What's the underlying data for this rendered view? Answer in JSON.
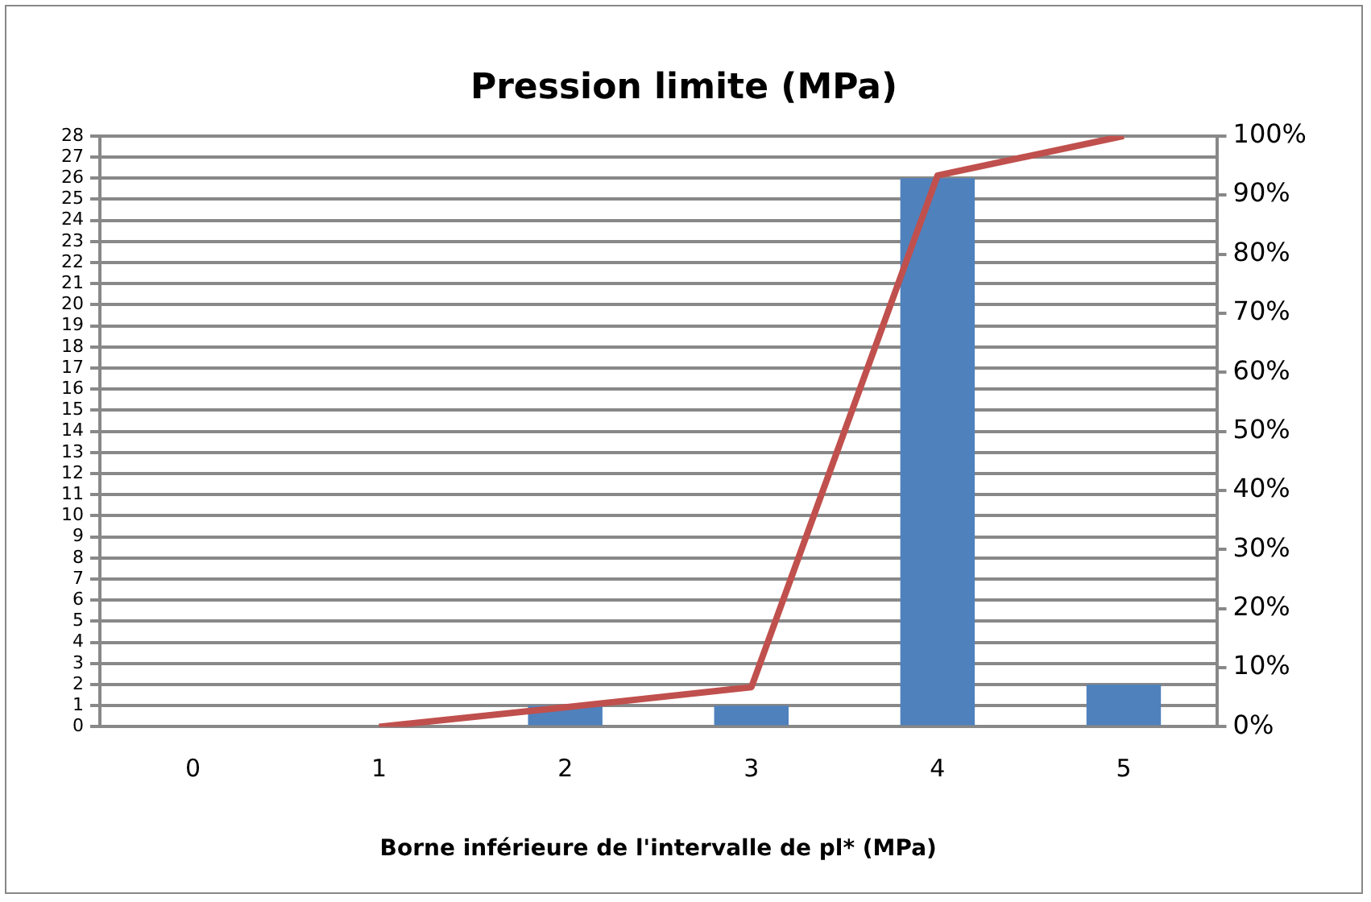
{
  "chart_data": {
    "type": "bar",
    "title": "Pression limite (MPa)",
    "xlabel": "Borne inférieure de l'intervalle de pl* (MPa)",
    "categories": [
      "0",
      "1",
      "2",
      "3",
      "4",
      "5"
    ],
    "series": [
      {
        "color": "#4f81bd",
        "values": [
          0,
          0,
          1,
          1,
          26,
          2
        ]
      },
      {
        "type": "line",
        "axis": "y2",
        "color": "#c0504d",
        "values": [
          null,
          0,
          3.3,
          6.7,
          93.3,
          100
        ]
      }
    ],
    "ylim": [
      0,
      28
    ],
    "yticks": [
      0,
      1,
      2,
      3,
      4,
      5,
      6,
      7,
      8,
      9,
      10,
      11,
      12,
      13,
      14,
      15,
      16,
      17,
      18,
      19,
      20,
      21,
      22,
      23,
      24,
      25,
      26,
      27,
      28
    ],
    "y2lim": [
      0,
      100
    ],
    "y2ticks": [
      {
        "value": 0,
        "label": "0%"
      },
      {
        "value": 10,
        "label": "10%"
      },
      {
        "value": 20,
        "label": "20%"
      },
      {
        "value": 30,
        "label": "30%"
      },
      {
        "value": 40,
        "label": "40%"
      },
      {
        "value": 50,
        "label": "50%"
      },
      {
        "value": 60,
        "label": "60%"
      },
      {
        "value": 70,
        "label": "70%"
      },
      {
        "value": 80,
        "label": "80%"
      },
      {
        "value": 90,
        "label": "90%"
      },
      {
        "value": 100,
        "label": "100%"
      }
    ],
    "grid": "y",
    "legend": false,
    "marker": "none"
  }
}
